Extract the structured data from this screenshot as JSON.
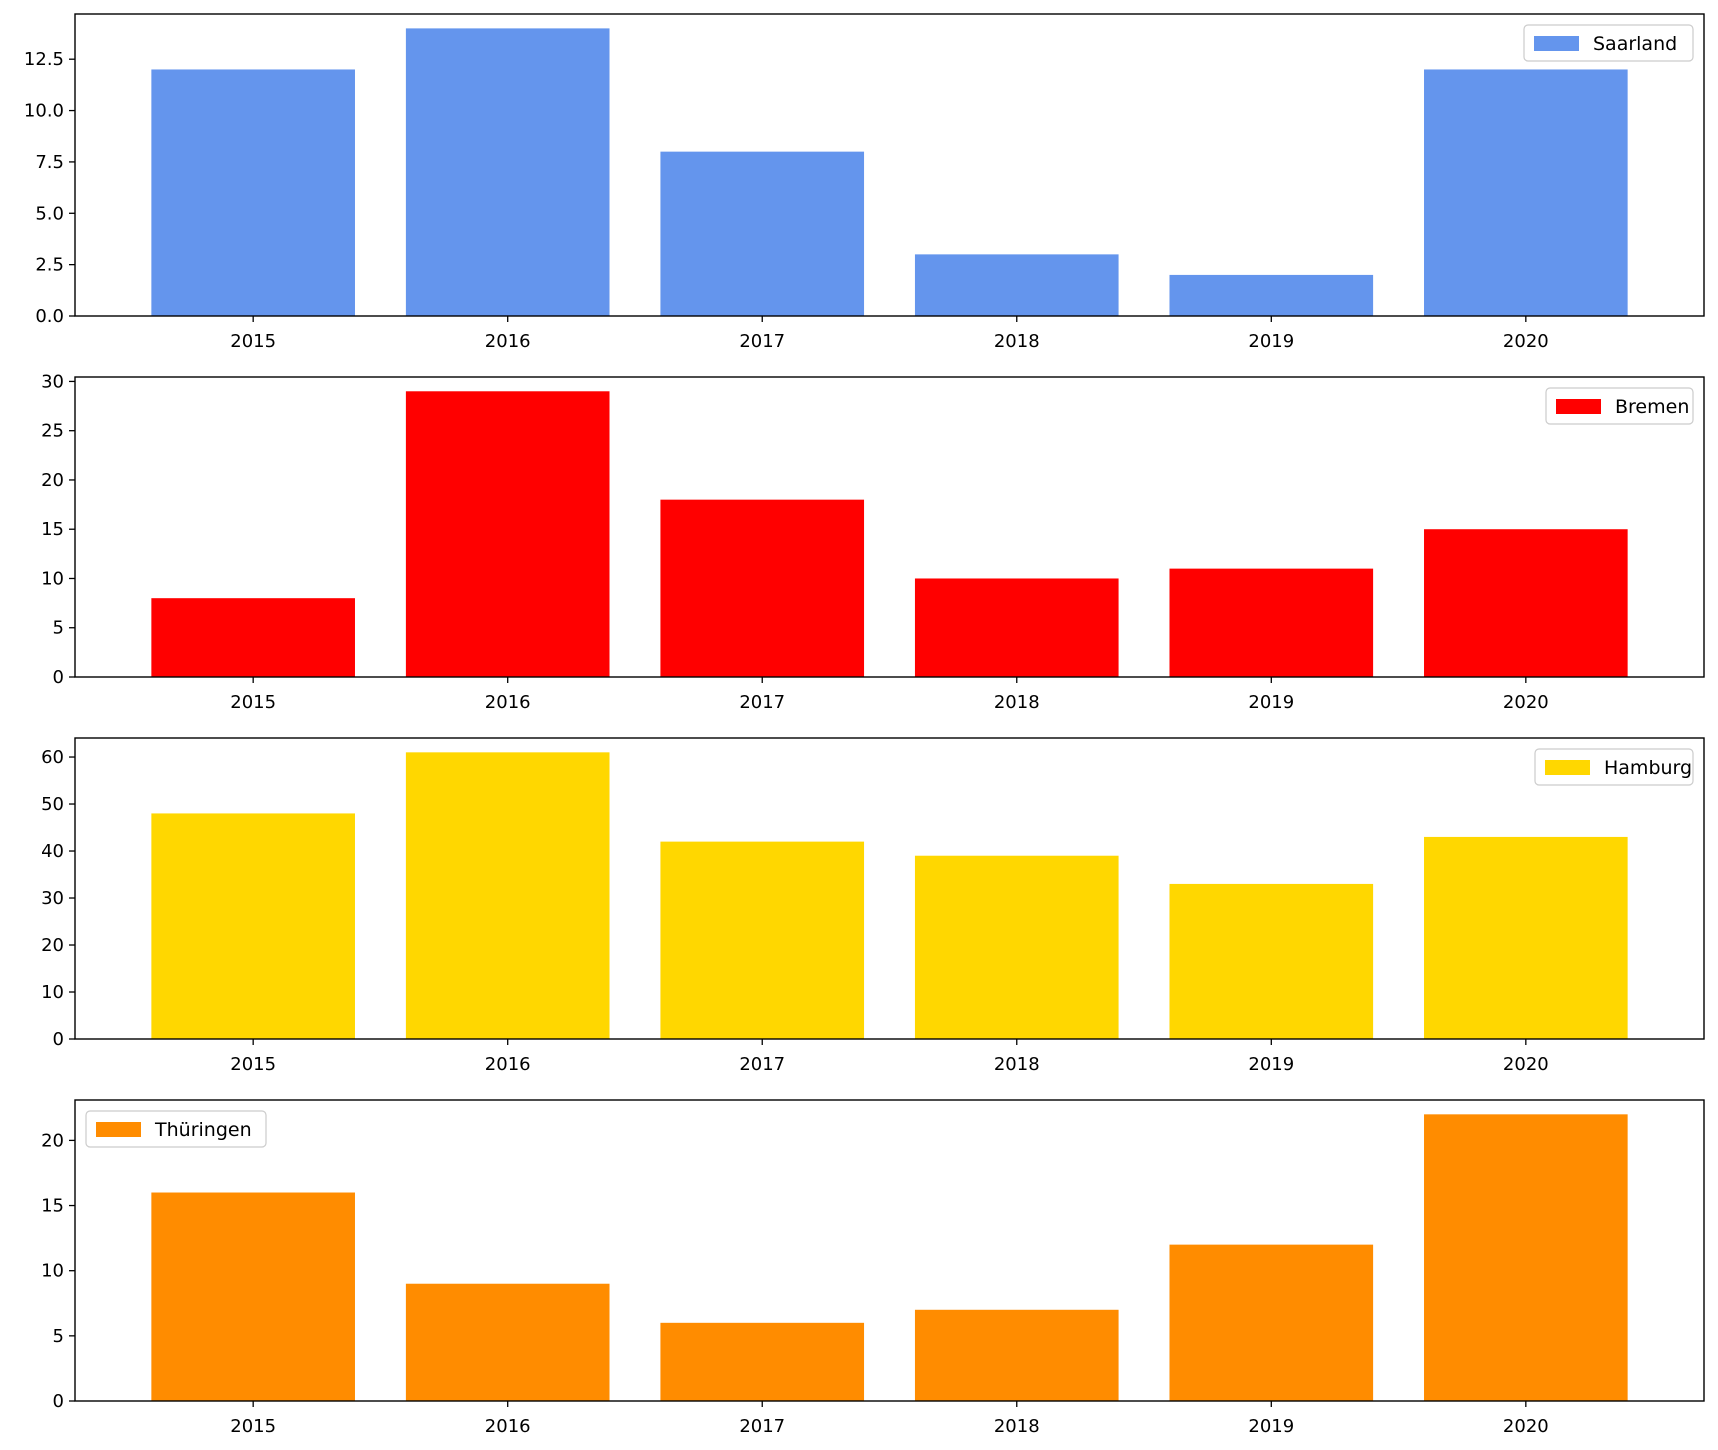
{
  "chart_data": [
    {
      "type": "bar",
      "categories": [
        "2015",
        "2016",
        "2017",
        "2018",
        "2019",
        "2020"
      ],
      "series": [
        {
          "name": "Saarland",
          "values": [
            12,
            14,
            8,
            3,
            2,
            12
          ],
          "color": "#6495ED"
        }
      ],
      "ylim": [
        0,
        14.7
      ],
      "yticks": [
        0.0,
        2.5,
        5.0,
        7.5,
        10.0,
        12.5
      ],
      "ytick_labels": [
        "0.0",
        "2.5",
        "5.0",
        "7.5",
        "10.0",
        "12.5"
      ],
      "legend_loc": "upper right",
      "title": "",
      "xlabel": "",
      "ylabel": ""
    },
    {
      "type": "bar",
      "categories": [
        "2015",
        "2016",
        "2017",
        "2018",
        "2019",
        "2020"
      ],
      "series": [
        {
          "name": "Bremen",
          "values": [
            8,
            29,
            18,
            10,
            11,
            15
          ],
          "color": "#FF0000"
        }
      ],
      "ylim": [
        0,
        30.45
      ],
      "yticks": [
        0,
        5,
        10,
        15,
        20,
        25,
        30
      ],
      "ytick_labels": [
        "0",
        "5",
        "10",
        "15",
        "20",
        "25",
        "30"
      ],
      "legend_loc": "upper right",
      "title": "",
      "xlabel": "",
      "ylabel": ""
    },
    {
      "type": "bar",
      "categories": [
        "2015",
        "2016",
        "2017",
        "2018",
        "2019",
        "2020"
      ],
      "series": [
        {
          "name": "Hamburg",
          "values": [
            48,
            61,
            42,
            39,
            33,
            43
          ],
          "color": "#FFD700"
        }
      ],
      "ylim": [
        0,
        64.05
      ],
      "yticks": [
        0,
        10,
        20,
        30,
        40,
        50,
        60
      ],
      "ytick_labels": [
        "0",
        "10",
        "20",
        "30",
        "40",
        "50",
        "60"
      ],
      "legend_loc": "upper right",
      "title": "",
      "xlabel": "",
      "ylabel": ""
    },
    {
      "type": "bar",
      "categories": [
        "2015",
        "2016",
        "2017",
        "2018",
        "2019",
        "2020"
      ],
      "series": [
        {
          "name": "Thüringen",
          "values": [
            16,
            9,
            6,
            7,
            12,
            22
          ],
          "color": "#FF8C00"
        }
      ],
      "ylim": [
        0,
        23.1
      ],
      "yticks": [
        0,
        5,
        10,
        15,
        20
      ],
      "ytick_labels": [
        "0",
        "5",
        "10",
        "15",
        "20"
      ],
      "legend_loc": "upper left",
      "title": "",
      "xlabel": "",
      "ylabel": ""
    }
  ]
}
